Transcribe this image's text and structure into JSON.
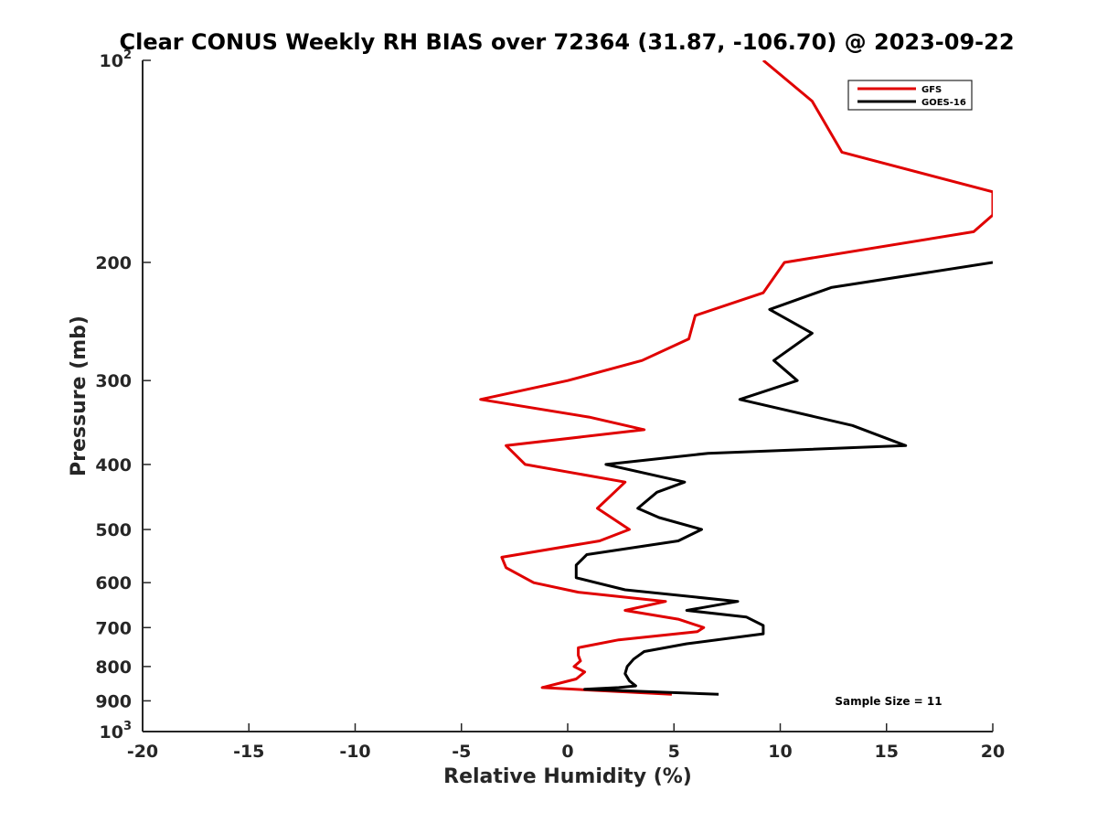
{
  "chart_data": {
    "type": "line",
    "title": "Clear CONUS Weekly RH BIAS over 72364 (31.87, -106.70) @ 2023-09-22",
    "xlabel": "Relative Humidity (%)",
    "ylabel": "Pressure (mb)",
    "xlim": [
      -20,
      20
    ],
    "ylim": [
      100,
      1000
    ],
    "y_scale": "log",
    "y_reversed": true,
    "x_ticks": [
      "-20",
      "-15",
      "-10",
      "-5",
      "0",
      "5",
      "10",
      "15",
      "20"
    ],
    "y_ticks": [
      {
        "value": 100,
        "label": "10",
        "exp": "2"
      },
      {
        "value": 200,
        "label": "200"
      },
      {
        "value": 300,
        "label": "300"
      },
      {
        "value": 400,
        "label": "400"
      },
      {
        "value": 500,
        "label": "500"
      },
      {
        "value": 600,
        "label": "600"
      },
      {
        "value": 700,
        "label": "700"
      },
      {
        "value": 800,
        "label": "800"
      },
      {
        "value": 900,
        "label": "900"
      },
      {
        "value": 1000,
        "label": "10",
        "exp": "3"
      }
    ],
    "grid": false,
    "legend_position": "top-right",
    "annotation": "Sample Size = 11",
    "series": [
      {
        "name": "GFS",
        "color": "#e00000",
        "x": [
          9.2,
          11.5,
          12.9,
          20.0,
          20.0,
          19.1,
          10.2,
          9.2,
          6.0,
          5.7,
          3.5,
          0.0,
          -4.1,
          1.0,
          3.6,
          -2.9,
          -2.0,
          2.7,
          2.2,
          1.4,
          2.9,
          1.5,
          -3.1,
          -2.9,
          -1.6,
          0.5,
          4.6,
          2.7,
          5.2,
          6.4,
          6.1,
          2.4,
          0.5,
          0.5,
          0.6,
          0.3,
          0.8,
          0.4,
          -1.2,
          4.9
        ],
        "y": [
          100,
          115,
          137,
          157,
          170,
          180,
          200,
          222,
          240,
          260,
          280,
          300,
          320,
          340,
          355,
          375,
          400,
          425,
          440,
          465,
          500,
          520,
          550,
          570,
          600,
          620,
          640,
          660,
          680,
          700,
          710,
          730,
          750,
          770,
          785,
          800,
          815,
          835,
          860,
          880
        ]
      },
      {
        "name": "GOES-16",
        "color": "#000000",
        "x": [
          20.0,
          12.4,
          9.5,
          11.5,
          9.7,
          10.8,
          8.1,
          13.4,
          15.9,
          6.6,
          1.8,
          5.5,
          4.2,
          3.3,
          4.3,
          6.3,
          5.2,
          0.9,
          0.4,
          0.4,
          2.7,
          8.0,
          5.6,
          8.4,
          9.2,
          9.2,
          5.6,
          3.6,
          3.1,
          2.8,
          2.7,
          2.9,
          3.2,
          2.4,
          0.8,
          7.1
        ],
        "y": [
          200,
          218,
          235,
          255,
          280,
          300,
          320,
          350,
          375,
          385,
          400,
          425,
          440,
          465,
          480,
          500,
          520,
          545,
          565,
          590,
          615,
          640,
          660,
          675,
          695,
          715,
          740,
          760,
          780,
          800,
          820,
          840,
          855,
          860,
          865,
          880
        ]
      }
    ]
  }
}
